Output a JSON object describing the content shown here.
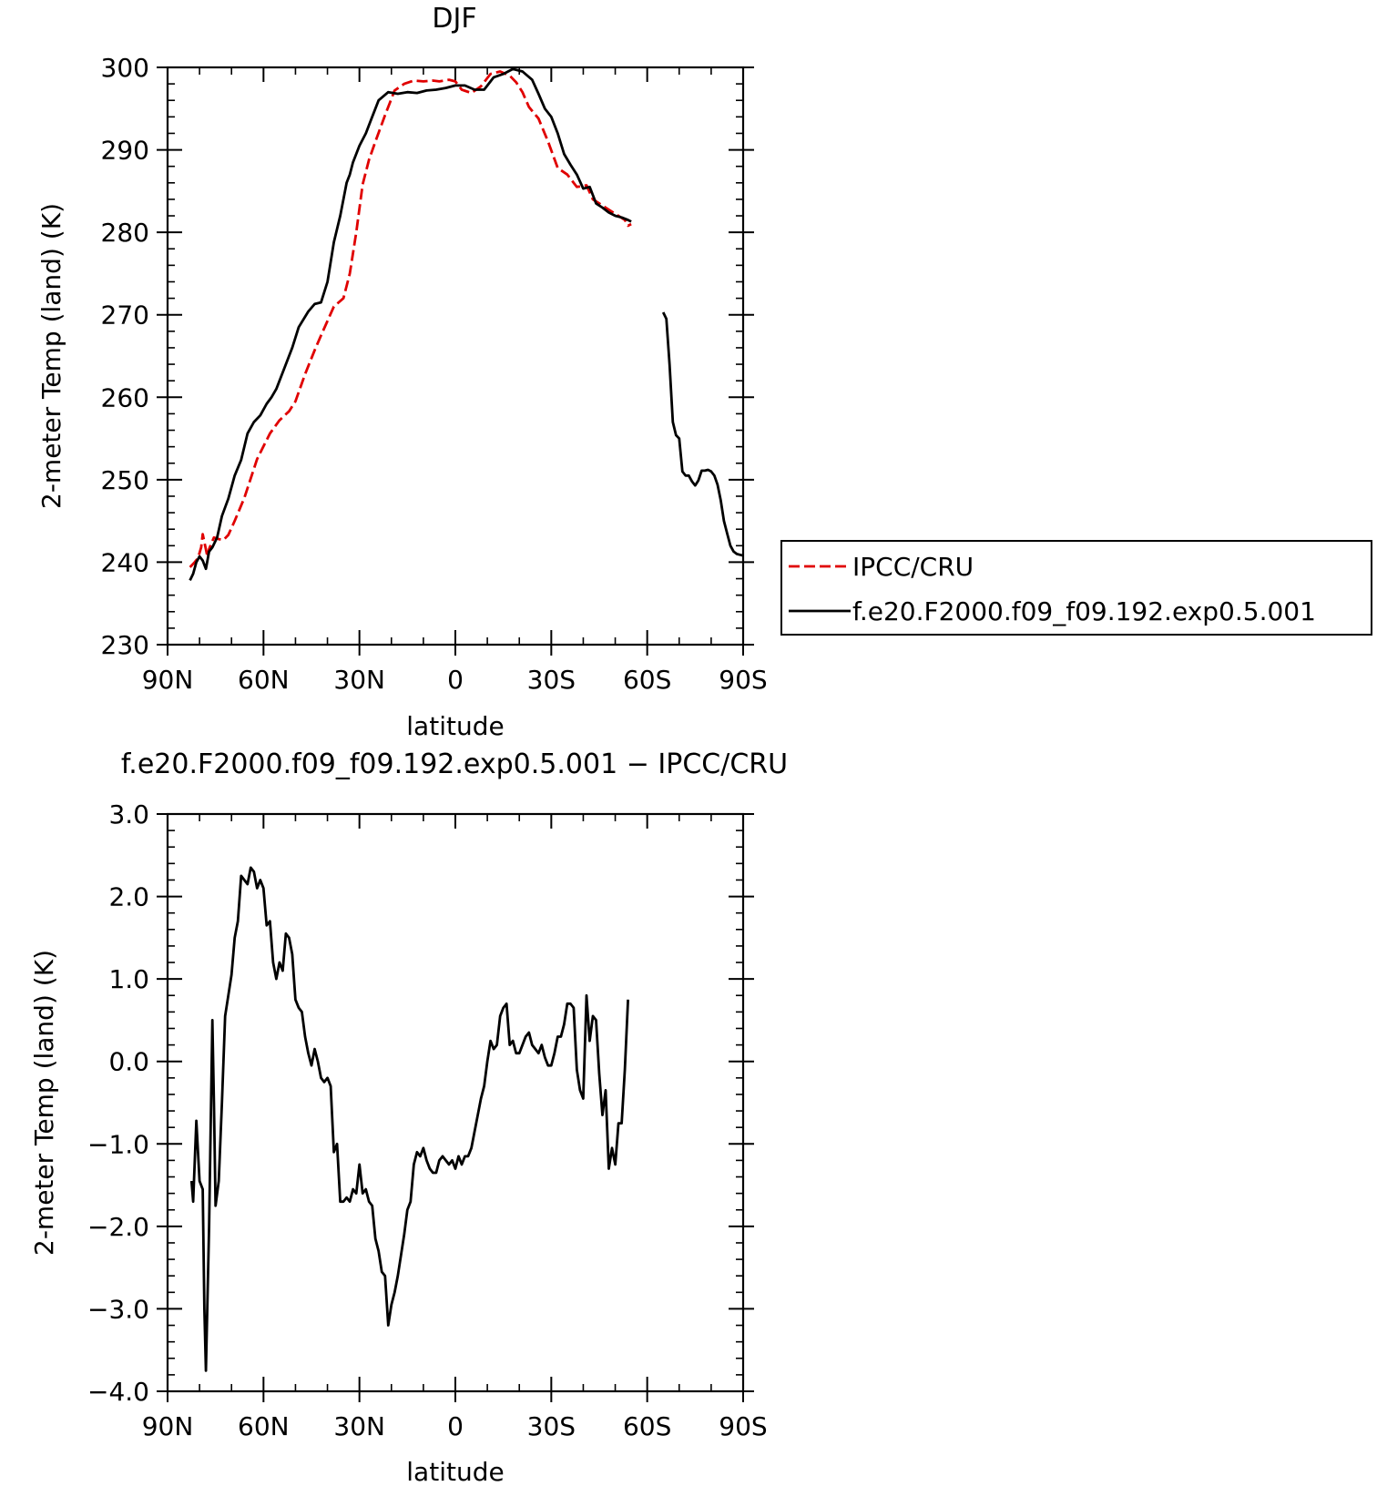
{
  "chart_data": [
    {
      "type": "line",
      "title": "DJF",
      "xlabel": "latitude",
      "ylabel": "2-meter Temp (land) (K)",
      "x_axis": {
        "direction": "north-to-south",
        "ticks": [
          90,
          60,
          30,
          0,
          -30,
          -60,
          -90
        ],
        "tick_labels": [
          "90N",
          "60N",
          "30N",
          "0",
          "30S",
          "60S",
          "90S"
        ]
      },
      "ylim": [
        230,
        300
      ],
      "yticks": [
        230,
        240,
        250,
        260,
        270,
        280,
        290,
        300
      ],
      "ytick_labels": [
        "230",
        "240",
        "250",
        "260",
        "270",
        "280",
        "290",
        "300"
      ],
      "grid": false,
      "legend_placement": "right",
      "legend": [
        "IPCC/CRU",
        "f.e20.F2000.f09_f09.192.exp0.5.001"
      ],
      "series": [
        {
          "name": "IPCC/CRU",
          "color": "#e00000",
          "dash": "dashed",
          "segments": [
            {
              "x": [
                83,
                81.5,
                80.5,
                79.5,
                79,
                77.5,
                77,
                75.5,
                74,
                72.5,
                71,
                69,
                66,
                62,
                58,
                55,
                52,
                50,
                47,
                44,
                42,
                38,
                35,
                33,
                31,
                29,
                27,
                25,
                22,
                19,
                16,
                13,
                10,
                7,
                5,
                2,
                0,
                -2,
                -5,
                -8,
                -11,
                -14,
                -17,
                -19,
                -21,
                -23,
                -26,
                -29,
                -32,
                -35,
                -38,
                -41,
                -43,
                -45,
                -47,
                -49,
                -51,
                -53,
                -54,
                -55
              ],
              "y": [
                239.4,
                240.0,
                240.5,
                241.8,
                243.4,
                240.6,
                241.6,
                243.0,
                242.8,
                242.7,
                243.3,
                245.0,
                247.8,
                252.5,
                255.6,
                257.2,
                258.3,
                259.5,
                262.8,
                265.7,
                267.5,
                271.0,
                272.0,
                275.0,
                280.0,
                285.8,
                288.8,
                291.0,
                294.2,
                297.2,
                298.0,
                298.4,
                298.3,
                298.4,
                298.3,
                298.5,
                298.3,
                297.3,
                296.9,
                297.7,
                299.2,
                299.5,
                299.0,
                298.2,
                297.0,
                295.2,
                293.8,
                291.0,
                287.8,
                287.0,
                285.5,
                285.7,
                284.0,
                283.5,
                283.0,
                282.5,
                282.0,
                281.5,
                280.8,
                281.0
              ]
            }
          ]
        },
        {
          "name": "f.e20.F2000.f09_f09.192.exp0.5.001",
          "color": "#000000",
          "dash": "solid",
          "segments": [
            {
              "x": [
                83,
                82,
                81,
                80,
                79,
                78,
                77,
                76,
                74.5,
                73,
                71,
                69,
                67,
                65,
                63,
                61,
                59,
                57.5,
                56,
                54,
                51,
                49,
                46,
                44,
                42,
                40,
                38,
                36,
                34,
                33,
                32,
                30,
                28,
                26,
                24,
                21,
                18,
                15,
                12,
                9,
                6,
                3,
                0,
                -3,
                -6,
                -9,
                -12,
                -15,
                -18,
                -21,
                -24,
                -26,
                -28,
                -30,
                -32,
                -34,
                -36,
                -38,
                -40,
                -42,
                -44,
                -46,
                -48,
                -50,
                -52,
                -54,
                -55
              ],
              "y": [
                237.8,
                238.6,
                240.0,
                240.7,
                240.2,
                239.2,
                241.3,
                241.8,
                243.0,
                245.6,
                247.7,
                250.5,
                252.4,
                255.6,
                257.0,
                257.8,
                259.2,
                260.0,
                261.0,
                263.0,
                266.0,
                268.5,
                270.4,
                271.3,
                271.5,
                274.0,
                278.8,
                282.0,
                286.0,
                287.0,
                288.5,
                290.5,
                292.0,
                294.0,
                296.0,
                297.0,
                296.8,
                297.0,
                296.9,
                297.2,
                297.3,
                297.5,
                297.8,
                297.8,
                297.3,
                297.3,
                298.8,
                299.2,
                299.8,
                299.5,
                298.5,
                296.8,
                295.0,
                294.0,
                292.0,
                289.5,
                288.2,
                287.0,
                285.3,
                285.5,
                283.5,
                283.0,
                282.4,
                282.0,
                281.8,
                281.5,
                281.3
              ]
            },
            {
              "x": [
                -65,
                -66,
                -67,
                -68,
                -69,
                -70,
                -71,
                -72,
                -73,
                -74,
                -75,
                -76,
                -77,
                -78,
                -79,
                -80,
                -81,
                -82,
                -83,
                -84,
                -85,
                -86,
                -87,
                -88,
                -89,
                -90
              ],
              "y": [
                270.3,
                269.5,
                264.0,
                257.0,
                255.4,
                255.0,
                251.0,
                250.5,
                250.5,
                249.8,
                249.3,
                249.9,
                251.1,
                251.1,
                251.2,
                251.0,
                250.5,
                249.4,
                247.5,
                245.0,
                243.5,
                242.0,
                241.3,
                241.0,
                240.9,
                240.8
              ]
            }
          ]
        }
      ]
    },
    {
      "type": "line",
      "title": "f.e20.F2000.f09_f09.192.exp0.5.001 − IPCC/CRU",
      "xlabel": "latitude",
      "ylabel": "2-meter Temp (land) (K)",
      "x_axis": {
        "direction": "north-to-south",
        "ticks": [
          90,
          60,
          30,
          0,
          -30,
          -60,
          -90
        ],
        "tick_labels": [
          "90N",
          "60N",
          "30N",
          "0",
          "30S",
          "60S",
          "90S"
        ]
      },
      "ylim": [
        -4,
        3
      ],
      "yticks": [
        -4,
        -3,
        -2,
        -1,
        0,
        1,
        2,
        3
      ],
      "ytick_labels": [
        "−4.0",
        "−3.0",
        "−2.0",
        "−1.0",
        "0.0",
        "1.0",
        "2.0",
        "3.0"
      ],
      "grid": false,
      "series": [
        {
          "color": "#000000",
          "dash": "solid",
          "segments": [
            {
              "x": [
                82.5,
                82,
                81,
                80,
                79,
                78.5,
                78,
                77,
                76,
                75.5,
                75,
                74,
                73,
                72,
                71,
                70,
                69,
                68,
                67,
                66,
                65,
                64,
                63,
                62,
                61,
                60,
                59,
                58,
                57,
                56,
                55,
                54,
                53,
                52,
                51,
                50,
                49,
                48,
                47,
                46,
                45,
                44,
                43,
                42,
                41,
                40,
                39,
                38,
                37,
                36,
                35,
                34,
                33,
                32,
                31,
                30,
                29,
                28,
                27,
                26,
                25,
                24,
                23,
                22,
                21,
                20,
                19,
                18,
                17,
                16,
                15,
                14,
                13,
                12,
                11,
                10,
                9,
                8,
                7,
                6,
                5,
                4,
                3,
                2,
                1,
                0,
                -1,
                -2,
                -3,
                -4,
                -5,
                -6,
                -7,
                -8,
                -9,
                -10,
                -11,
                -12,
                -13,
                -14,
                -15,
                -16,
                -17,
                -18,
                -19,
                -20,
                -21,
                -22,
                -23,
                -24,
                -25,
                -26,
                -27,
                -28,
                -29,
                -30,
                -31,
                -32,
                -33,
                -34,
                -35,
                -36,
                -37,
                -38,
                -39,
                -40,
                -41,
                -42,
                -43,
                -44,
                -45,
                -46,
                -47,
                -48,
                -49,
                -50,
                -51,
                -52,
                -53,
                -54
              ],
              "y": [
                -1.45,
                -1.7,
                -0.72,
                -1.45,
                -1.55,
                -3.0,
                -3.75,
                -2.0,
                0.5,
                -0.5,
                -1.75,
                -1.45,
                -0.5,
                0.55,
                0.8,
                1.05,
                1.5,
                1.7,
                2.25,
                2.2,
                2.15,
                2.35,
                2.3,
                2.1,
                2.2,
                2.1,
                1.65,
                1.7,
                1.2,
                1.0,
                1.2,
                1.1,
                1.55,
                1.5,
                1.3,
                0.75,
                0.65,
                0.6,
                0.3,
                0.1,
                -0.05,
                0.15,
                0.0,
                -0.2,
                -0.25,
                -0.2,
                -0.3,
                -1.1,
                -1.0,
                -1.7,
                -1.7,
                -1.65,
                -1.7,
                -1.55,
                -1.6,
                -1.25,
                -1.6,
                -1.55,
                -1.7,
                -1.75,
                -2.15,
                -2.3,
                -2.55,
                -2.6,
                -3.2,
                -2.95,
                -2.8,
                -2.6,
                -2.35,
                -2.1,
                -1.8,
                -1.7,
                -1.25,
                -1.1,
                -1.15,
                -1.05,
                -1.2,
                -1.3,
                -1.35,
                -1.35,
                -1.2,
                -1.15,
                -1.2,
                -1.25,
                -1.2,
                -1.3,
                -1.15,
                -1.25,
                -1.15,
                -1.15,
                -1.05,
                -0.85,
                -0.65,
                -0.45,
                -0.3,
                0.0,
                0.25,
                0.15,
                0.2,
                0.55,
                0.65,
                0.7,
                0.2,
                0.25,
                0.1,
                0.1,
                0.2,
                0.3,
                0.35,
                0.2,
                0.15,
                0.1,
                0.2,
                0.05,
                -0.05,
                -0.05,
                0.1,
                0.3,
                0.3,
                0.45,
                0.7,
                0.7,
                0.65,
                -0.1,
                -0.35,
                -0.45,
                0.8,
                0.25,
                0.55,
                0.5,
                -0.15,
                -0.65,
                -0.35,
                -1.3,
                -1.05,
                -1.25,
                -0.75,
                -0.75,
                -0.1,
                0.75
              ]
            }
          ]
        }
      ]
    }
  ]
}
